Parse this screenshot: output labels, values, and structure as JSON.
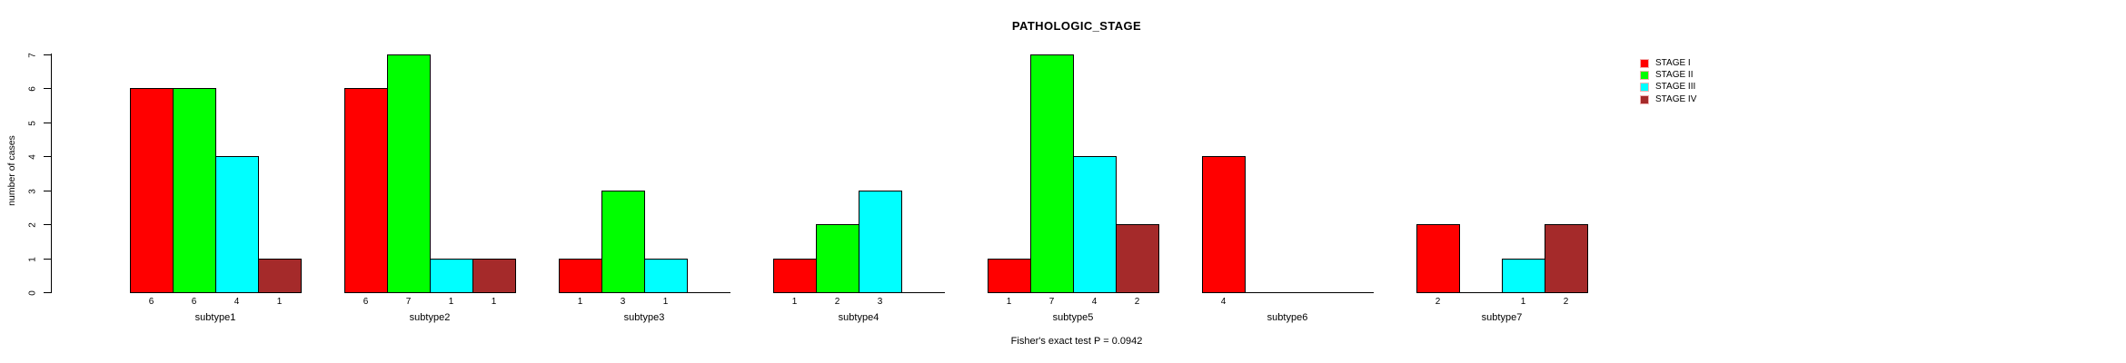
{
  "chart_data": {
    "type": "bar",
    "title": "PATHOLOGIC_STAGE",
    "ylabel": "number of cases",
    "xlabel": "",
    "caption": "Fisher's exact test P = 0.0942",
    "categories": [
      "subtype1",
      "subtype2",
      "subtype3",
      "subtype4",
      "subtype5",
      "subtype6",
      "subtype7"
    ],
    "series": [
      {
        "name": "STAGE I",
        "color": "#ff0000",
        "values": [
          6,
          6,
          1,
          1,
          1,
          4,
          2
        ]
      },
      {
        "name": "STAGE II",
        "color": "#00ff00",
        "values": [
          6,
          7,
          3,
          2,
          7,
          0,
          0
        ]
      },
      {
        "name": "STAGE III",
        "color": "#00ffff",
        "values": [
          4,
          1,
          1,
          3,
          4,
          0,
          1
        ]
      },
      {
        "name": "STAGE IV",
        "color": "#a52a2a",
        "values": [
          1,
          1,
          0,
          0,
          2,
          0,
          2
        ]
      }
    ],
    "yticks": [
      "0",
      "1",
      "2",
      "3",
      "4",
      "5",
      "6",
      "7"
    ],
    "ylim": [
      0,
      7
    ],
    "grid": false,
    "legend_position": "right-inset",
    "bar_value_labels": "shown under each nonzero bar",
    "zero_bars": "drawn as flat baseline segments, no value label",
    "colors": {
      "background": "#ffffff",
      "axis": "#000000",
      "text": "#000000",
      "bar_border": "#000000",
      "legend_swatch_border": "#f2b2b2"
    }
  }
}
